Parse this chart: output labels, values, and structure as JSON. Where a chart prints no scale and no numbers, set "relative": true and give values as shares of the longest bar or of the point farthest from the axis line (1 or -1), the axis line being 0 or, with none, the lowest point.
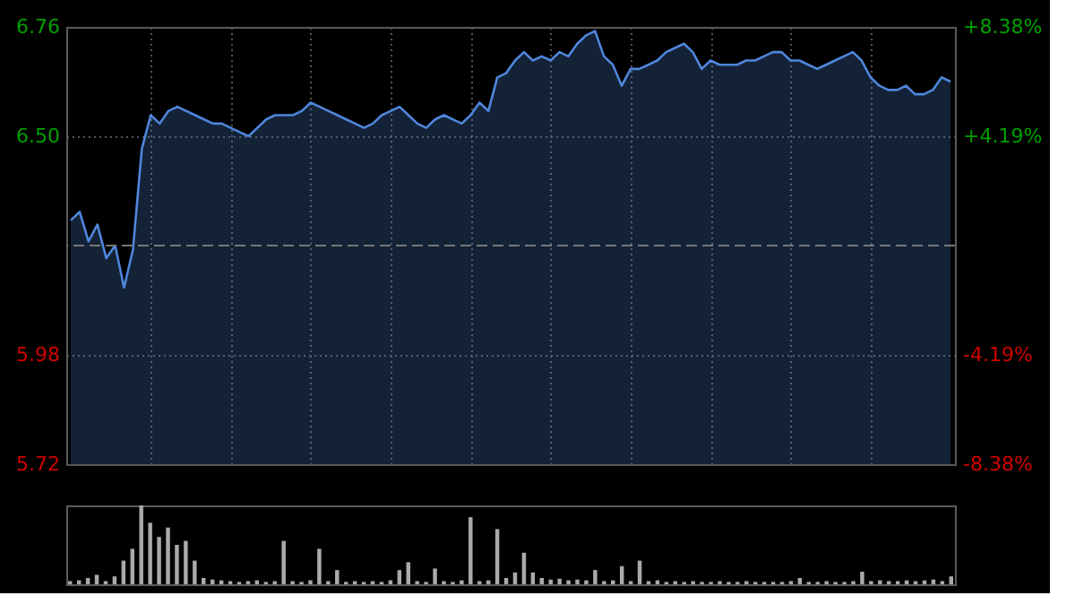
{
  "chart_data": [
    {
      "type": "area",
      "color": "#4f86dc",
      "categories": [
        null,
        null,
        null,
        null,
        null,
        null,
        null,
        null,
        null,
        null,
        null,
        null,
        null,
        null,
        null,
        null,
        null,
        null,
        null,
        null,
        null,
        null,
        null,
        null,
        null,
        null,
        null,
        null,
        null,
        null,
        null,
        null,
        null,
        null,
        null,
        null,
        null,
        null,
        null,
        null,
        null,
        null,
        null,
        null,
        null,
        null,
        null,
        null,
        null,
        null,
        null,
        null,
        null,
        null,
        null,
        null,
        null,
        null,
        null,
        null,
        null,
        null,
        null,
        null,
        null,
        null,
        null,
        null,
        null,
        null,
        null,
        null,
        null,
        null,
        null,
        null,
        null,
        null,
        null,
        null,
        null,
        null,
        null,
        null,
        null,
        null,
        null,
        null,
        null,
        null,
        null,
        null,
        null,
        null,
        null,
        null,
        null,
        null,
        null,
        null
      ],
      "values": [
        6.3,
        6.32,
        6.25,
        6.29,
        6.21,
        6.24,
        6.14,
        6.23,
        6.47,
        6.55,
        6.53,
        6.56,
        6.57,
        6.56,
        6.55,
        6.54,
        6.53,
        6.53,
        6.52,
        6.51,
        6.5,
        6.52,
        6.54,
        6.55,
        6.55,
        6.55,
        6.56,
        6.58,
        6.57,
        6.56,
        6.55,
        6.54,
        6.53,
        6.52,
        6.53,
        6.55,
        6.56,
        6.57,
        6.55,
        6.53,
        6.52,
        6.54,
        6.55,
        6.54,
        6.53,
        6.55,
        6.58,
        6.56,
        6.64,
        6.65,
        6.68,
        6.7,
        6.68,
        6.69,
        6.68,
        6.7,
        6.69,
        6.72,
        6.74,
        6.75,
        6.69,
        6.67,
        6.62,
        6.66,
        6.66,
        6.67,
        6.68,
        6.7,
        6.71,
        6.72,
        6.7,
        6.66,
        6.68,
        6.67,
        6.67,
        6.67,
        6.68,
        6.68,
        6.69,
        6.7,
        6.7,
        6.68,
        6.68,
        6.67,
        6.66,
        6.67,
        6.68,
        6.69,
        6.7,
        6.68,
        6.64,
        6.62,
        6.61,
        6.61,
        6.62,
        6.6,
        6.6,
        6.61,
        6.64,
        6.63
      ],
      "ylim": [
        5.72,
        6.76
      ],
      "yticks": [
        {
          "value": 5.72,
          "label": "5.72"
        },
        {
          "value": 5.98,
          "label": "5.98"
        },
        {
          "value": 6.5,
          "label": "6.50"
        },
        {
          "value": 6.76,
          "label": "6.76"
        }
      ],
      "y2lim": [
        -8.38,
        8.38
      ],
      "y2ticks": [
        {
          "value": -8.38,
          "label": "-8.38%"
        },
        {
          "value": -4.19,
          "label": "-4.19%"
        },
        {
          "value": 4.19,
          "label": "+4.19%"
        },
        {
          "value": 8.38,
          "label": "+8.38%"
        }
      ],
      "ref_lines": [
        {
          "axis": "y",
          "value": 6.24,
          "line_style": "dashed",
          "color": "#777777"
        }
      ],
      "grid": true
    },
    {
      "type": "bar",
      "color": "#aaaaaa",
      "relative": true,
      "categories": [
        null,
        null,
        null,
        null,
        null,
        null,
        null,
        null,
        null,
        null,
        null,
        null,
        null,
        null,
        null,
        null,
        null,
        null,
        null,
        null,
        null,
        null,
        null,
        null,
        null,
        null,
        null,
        null,
        null,
        null,
        null,
        null,
        null,
        null,
        null,
        null,
        null,
        null,
        null,
        null,
        null,
        null,
        null,
        null,
        null,
        null,
        null,
        null,
        null,
        null,
        null,
        null,
        null,
        null,
        null,
        null,
        null,
        null,
        null,
        null,
        null,
        null,
        null,
        null,
        null,
        null,
        null,
        null,
        null,
        null,
        null,
        null,
        null,
        null,
        null,
        null,
        null,
        null,
        null,
        null,
        null,
        null,
        null,
        null,
        null,
        null,
        null,
        null,
        null,
        null,
        null,
        null,
        null,
        null,
        null,
        null,
        null,
        null,
        null,
        null
      ],
      "values": [
        0.04,
        0.05,
        0.08,
        0.12,
        0.04,
        0.1,
        0.3,
        0.45,
        1.0,
        0.78,
        0.6,
        0.72,
        0.5,
        0.55,
        0.3,
        0.08,
        0.06,
        0.05,
        0.04,
        0.03,
        0.04,
        0.05,
        0.03,
        0.04,
        0.55,
        0.04,
        0.03,
        0.05,
        0.45,
        0.04,
        0.18,
        0.03,
        0.04,
        0.03,
        0.04,
        0.03,
        0.05,
        0.18,
        0.28,
        0.04,
        0.03,
        0.2,
        0.04,
        0.03,
        0.05,
        0.85,
        0.04,
        0.05,
        0.7,
        0.08,
        0.15,
        0.4,
        0.15,
        0.08,
        0.06,
        0.07,
        0.05,
        0.06,
        0.05,
        0.18,
        0.04,
        0.05,
        0.23,
        0.04,
        0.3,
        0.04,
        0.05,
        0.03,
        0.04,
        0.03,
        0.04,
        0.03,
        0.03,
        0.04,
        0.03,
        0.03,
        0.04,
        0.03,
        0.03,
        0.03,
        0.03,
        0.04,
        0.08,
        0.03,
        0.03,
        0.04,
        0.03,
        0.03,
        0.04,
        0.16,
        0.04,
        0.05,
        0.04,
        0.04,
        0.05,
        0.04,
        0.05,
        0.06,
        0.04,
        0.1
      ]
    }
  ]
}
